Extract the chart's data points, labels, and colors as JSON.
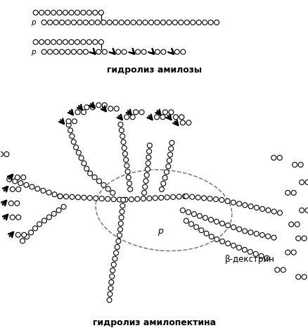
{
  "title_top": "гидролиз амилозы",
  "title_bottom": "гидролиз амилопектина",
  "label_p": "p",
  "label_beta": "β-декстрин",
  "bg_color": "#ffffff",
  "circle_ec": "#000000",
  "circle_fc": "#ffffff"
}
